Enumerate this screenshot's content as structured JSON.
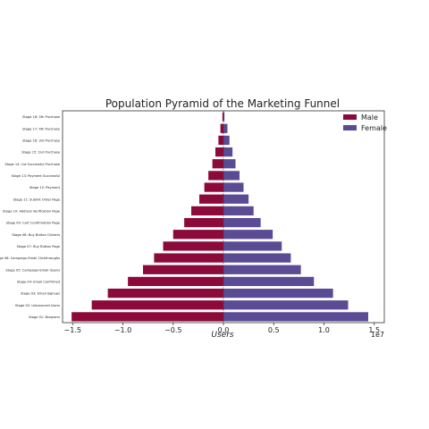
{
  "chart_data": {
    "type": "bar",
    "orientation": "horizontal",
    "title": "Population Pyramid of the Marketing Funnel",
    "xlabel": "Users",
    "ylabel": "",
    "x_scale_label": "1e7",
    "xlim": [
      -1.6,
      1.6
    ],
    "xticks": [
      -1.5,
      -1.0,
      -0.5,
      0.0,
      0.5,
      1.0,
      1.5
    ],
    "xtick_labels": [
      "−1.5",
      "−1.0",
      "−0.5",
      "0.0",
      "0.5",
      "1.0",
      "1.5"
    ],
    "grid": false,
    "legend_position": "top-right",
    "categories": [
      "Stage 01: Browsers",
      "Stage 02: Unbounced Users",
      "Stage 03: Email Signups",
      "Stage 04: Email Confirmed",
      "Stage 05: Campaign-Email Opens",
      "Stage 06: Campaign-Email Clickthroughs",
      "Stage 07: Buy Button Page",
      "Stage 08: Buy Button Clickers",
      "Stage 09: Cart Confirmation Page",
      "Stage 10: Address Verification Page",
      "Stage 11: Submit Order Page",
      "Stage 12: Payment",
      "Stage 13: Payment Successful",
      "Stage 14: 1st Successful Purchase",
      "Stage 15: 2nd Purchase",
      "Stage 16: 3rd Purchase",
      "Stage 17: 4th Purchase",
      "Stage 18: 5th Purchase"
    ],
    "series": [
      {
        "name": "Male",
        "color": "#8b0a3a",
        "values": [
          -1.51,
          -1.31,
          -1.15,
          -0.95,
          -0.8,
          -0.69,
          -0.6,
          -0.5,
          -0.39,
          -0.32,
          -0.24,
          -0.19,
          -0.15,
          -0.11,
          -0.08,
          -0.05,
          -0.03,
          -0.01
        ]
      },
      {
        "name": "Female",
        "color": "#5a4b94",
        "values": [
          1.44,
          1.24,
          1.09,
          0.9,
          0.77,
          0.67,
          0.58,
          0.49,
          0.37,
          0.3,
          0.25,
          0.2,
          0.16,
          0.12,
          0.09,
          0.06,
          0.04,
          0.01
        ]
      }
    ]
  }
}
